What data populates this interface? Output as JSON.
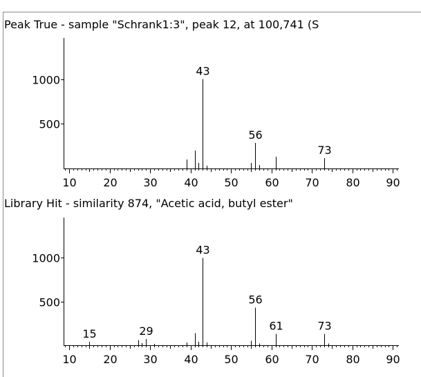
{
  "chart_data": [
    {
      "type": "spectrum",
      "title": "Peak True - sample \"Schrank1:3\", peak 12, at 100,741 (S",
      "x": [
        39,
        41,
        42,
        43,
        44,
        55,
        56,
        57,
        61,
        73
      ],
      "values": [
        100,
        200,
        60,
        1000,
        30,
        60,
        285,
        40,
        130,
        115
      ],
      "annotations": [
        43,
        56,
        73
      ],
      "color": "#000000",
      "xlim": [
        8.6,
        91.5
      ],
      "xticks": [
        10,
        20,
        30,
        40,
        50,
        60,
        70,
        80,
        90
      ],
      "minor_tick_step": 1,
      "ylim": [
        0,
        1460
      ],
      "yticks": [
        500,
        1000
      ]
    },
    {
      "type": "spectrum",
      "title": "Library Hit - similarity 874, \"Acetic acid, butyl ester\"",
      "x": [
        15,
        27,
        28,
        29,
        31,
        39,
        41,
        42,
        43,
        44,
        55,
        56,
        57,
        61,
        73,
        74
      ],
      "values": [
        40,
        60,
        25,
        70,
        15,
        30,
        140,
        40,
        1000,
        30,
        50,
        430,
        20,
        130,
        130,
        20
      ],
      "annotations": [
        15,
        29,
        43,
        56,
        61,
        73
      ],
      "color": "#000000",
      "xlim": [
        8.6,
        91.5
      ],
      "xticks": [
        10,
        20,
        30,
        40,
        50,
        60,
        70,
        80,
        90
      ],
      "minor_tick_step": 1,
      "ylim": [
        0,
        1460
      ],
      "yticks": [
        500,
        1000
      ]
    }
  ]
}
